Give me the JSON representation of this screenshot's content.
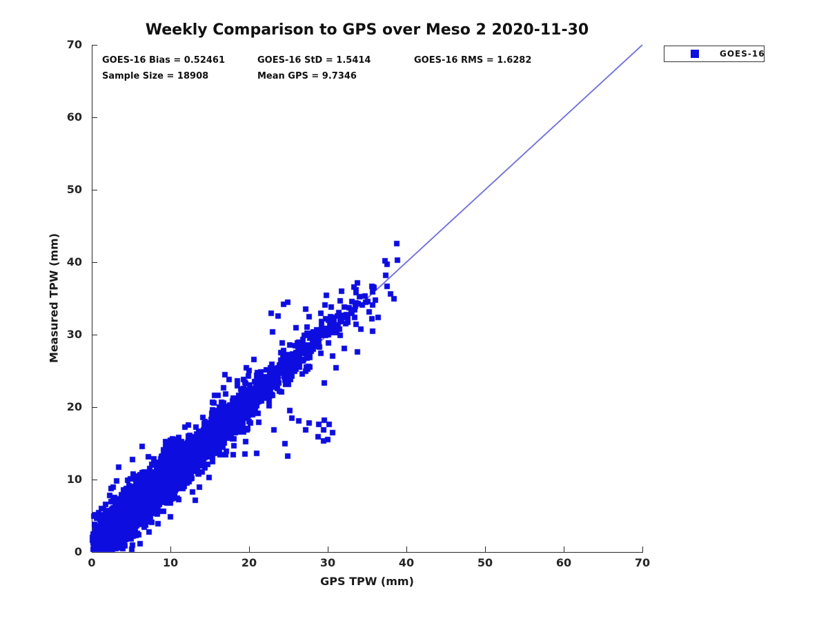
{
  "chart_data": {
    "type": "scatter",
    "title": "Weekly Comparison to GPS over Meso 2 2020-11-30",
    "xlabel": "GPS TPW (mm)",
    "ylabel": "Measured TPW (mm)",
    "xlim": [
      0,
      70
    ],
    "ylim": [
      0,
      70
    ],
    "xticks": [
      0,
      10,
      20,
      30,
      40,
      50,
      60,
      70
    ],
    "yticks": [
      0,
      10,
      20,
      30,
      40,
      50,
      60,
      70
    ],
    "grid": false,
    "box": false,
    "legend_position": "top-right-outside",
    "identity_line": {
      "x": [
        0,
        70
      ],
      "y": [
        0,
        70
      ],
      "color": "#3030c8",
      "width": 1.3
    },
    "series": [
      {
        "name": "GOES-16",
        "marker": "square",
        "marker_size_px": 8,
        "color": "#0d0de0",
        "sample_size": 18908,
        "bias": 0.52461,
        "std": 1.5414,
        "rms": 1.6282,
        "mean_gps": 9.7346,
        "x_range_observed": [
          0.1,
          39.2
        ],
        "y_range_observed": [
          0.4,
          42.6
        ],
        "render_model": {
          "seed": 20201130,
          "n_points": 5200,
          "x_distribution": "gamma",
          "gamma_shape": 2,
          "gamma_scale": 4.87,
          "x_max": 39.2,
          "core_std": 1.25,
          "halo_fraction": 0.11,
          "halo_std": 2.7,
          "y_min": 0.35,
          "y_max_clip": 69.3
        },
        "notable_points": [
          [
            38.8,
            42.6
          ],
          [
            33.8,
            37.1
          ],
          [
            35.8,
            36.6
          ],
          [
            37.5,
            36.7
          ],
          [
            38.0,
            35.6
          ],
          [
            38.4,
            35.0
          ],
          [
            35.7,
            35.9
          ],
          [
            34.7,
            35.3
          ],
          [
            34.4,
            34.1
          ],
          [
            35.1,
            34.6
          ],
          [
            33.6,
            34.4
          ],
          [
            33.9,
            34.3
          ],
          [
            24.9,
            34.5
          ],
          [
            24.4,
            34.2
          ],
          [
            22.8,
            33.0
          ],
          [
            23.7,
            32.6
          ],
          [
            27.2,
            33.5
          ],
          [
            31.6,
            34.7
          ],
          [
            30.4,
            33.8
          ],
          [
            29.1,
            33.0
          ],
          [
            27.6,
            32.5
          ],
          [
            26.0,
            31.0
          ],
          [
            31.6,
            32.4
          ],
          [
            32.4,
            32.8
          ],
          [
            30.7,
            32.2
          ],
          [
            35.6,
            32.2
          ],
          [
            34.2,
            30.8
          ],
          [
            36.4,
            32.4
          ],
          [
            33.8,
            27.6
          ],
          [
            35.7,
            30.5
          ],
          [
            25.2,
            28.6
          ],
          [
            23.0,
            30.4
          ],
          [
            19.6,
            15.2
          ],
          [
            19.5,
            13.5
          ],
          [
            21.0,
            13.6
          ],
          [
            23.2,
            16.9
          ],
          [
            24.6,
            15.0
          ],
          [
            24.9,
            13.2
          ],
          [
            25.4,
            18.5
          ],
          [
            26.3,
            18.1
          ],
          [
            27.2,
            16.9
          ],
          [
            27.6,
            17.8
          ],
          [
            28.9,
            17.6
          ],
          [
            29.6,
            18.2
          ],
          [
            29.5,
            16.9
          ],
          [
            28.8,
            15.9
          ],
          [
            29.5,
            15.3
          ],
          [
            25.2,
            19.5
          ],
          [
            30.0,
            15.5
          ],
          [
            30.2,
            17.6
          ],
          [
            30.6,
            16.5
          ],
          [
            22.5,
            21.0
          ],
          [
            0.4,
            5.1
          ],
          [
            0.6,
            4.7
          ],
          [
            0.9,
            5.4
          ],
          [
            1.2,
            4.6
          ],
          [
            0.3,
            5.0
          ],
          [
            1.5,
            6.0
          ]
        ]
      }
    ]
  },
  "stats": {
    "bias": "GOES-16 Bias = 0.52461",
    "std": "GOES-16 StD = 1.5414",
    "rms": "GOES-16 RMS = 1.6282",
    "sample_size": "Sample Size = 18908",
    "mean_gps": "Mean GPS = 9.7346"
  },
  "legend": {
    "label": "GOES-16",
    "marker_color": "#0d0de0"
  }
}
